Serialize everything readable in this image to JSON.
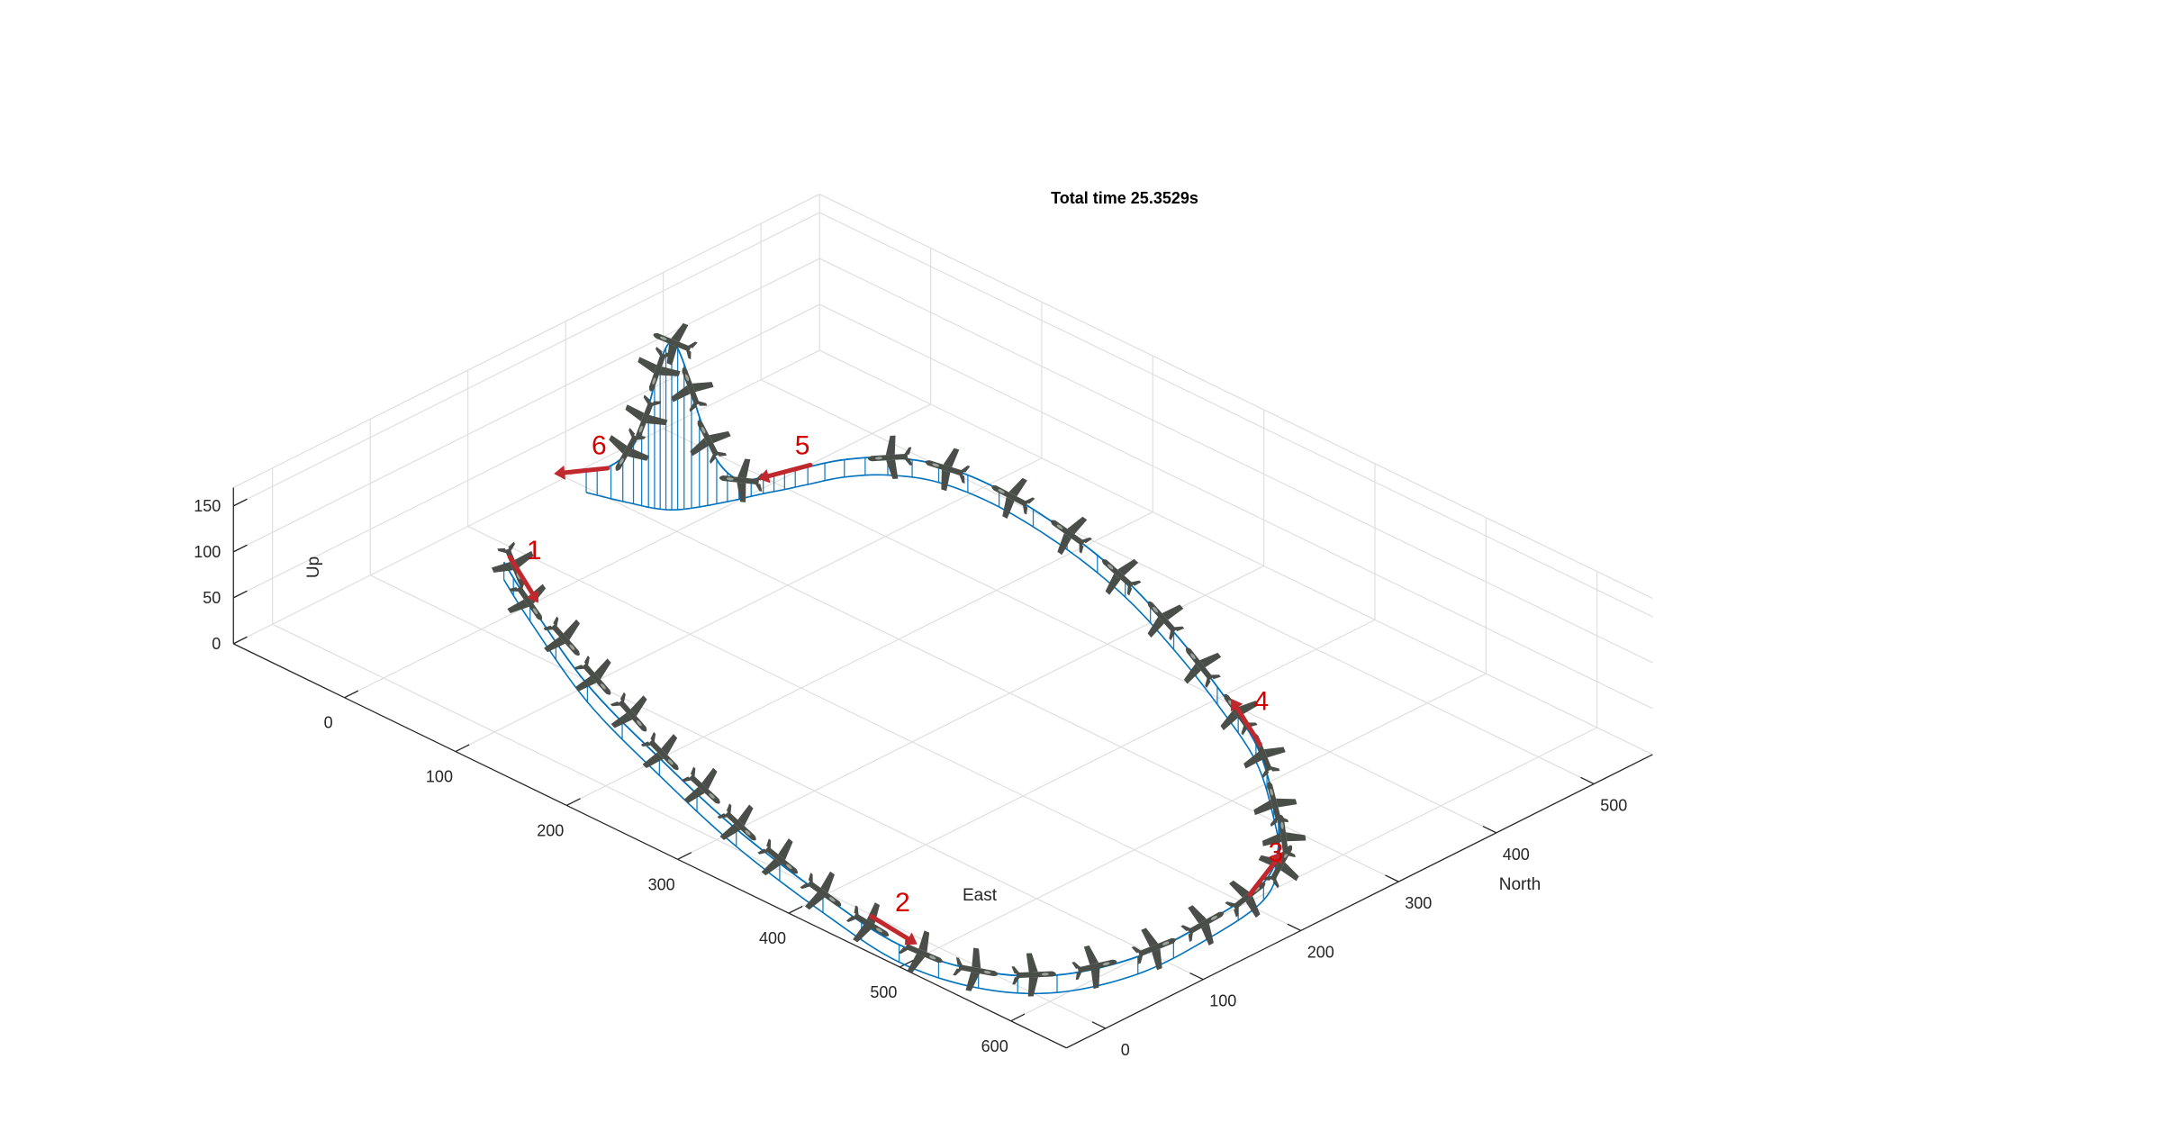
{
  "chart_data": {
    "type": "line3d",
    "title": "Total time 25.3529s",
    "xlabel": "East",
    "ylabel": "North",
    "zlabel": "Up",
    "xlim": [
      -100,
      650
    ],
    "ylim": [
      -40,
      560
    ],
    "zlim": [
      0,
      170
    ],
    "xticks": [
      "0",
      "100",
      "200",
      "300",
      "400",
      "500",
      "600"
    ],
    "yticks": [
      "0",
      "100",
      "200",
      "300",
      "400",
      "500"
    ],
    "zticks": [
      "0",
      "50",
      "100",
      "150"
    ],
    "grid": true,
    "colors": {
      "path": "#0072BD",
      "arrow": "#C0282D",
      "label": "#D40000",
      "grid": "#DFDFDF",
      "axis": "#262626",
      "aircraft": "#4A4E49"
    },
    "trajectory": [
      {
        "e": -50,
        "n": 180,
        "u": 1
      },
      {
        "e": 0,
        "n": 150,
        "u": 1
      },
      {
        "e": 100,
        "n": 95,
        "u": 1
      },
      {
        "e": 200,
        "n": 55,
        "u": 1
      },
      {
        "e": 300,
        "n": 20,
        "u": 1
      },
      {
        "e": 400,
        "n": -5,
        "u": 1
      },
      {
        "e": 480,
        "n": -18,
        "u": 1
      },
      {
        "e": 540,
        "n": -5,
        "u": 1
      },
      {
        "e": 580,
        "n": 30,
        "u": 1
      },
      {
        "e": 600,
        "n": 90,
        "u": 1
      },
      {
        "e": 600,
        "n": 160,
        "u": 1
      },
      {
        "e": 590,
        "n": 230,
        "u": 1
      },
      {
        "e": 560,
        "n": 280,
        "u": 1
      },
      {
        "e": 520,
        "n": 320,
        "u": 1
      },
      {
        "e": 460,
        "n": 370,
        "u": 1
      },
      {
        "e": 390,
        "n": 410,
        "u": 1
      },
      {
        "e": 320,
        "n": 445,
        "u": 1
      },
      {
        "e": 250,
        "n": 475,
        "u": 1
      },
      {
        "e": 180,
        "n": 495,
        "u": 1
      },
      {
        "e": 110,
        "n": 505,
        "u": 1
      },
      {
        "e": 60,
        "n": 500,
        "u": 1
      },
      {
        "e": 30,
        "n": 482,
        "u": 1
      },
      {
        "e": 12,
        "n": 458,
        "u": 1
      },
      {
        "e": 2,
        "n": 432,
        "u": 1
      },
      {
        "e": -4,
        "n": 415,
        "u": 0
      },
      {
        "e": -10,
        "n": 400,
        "u": 0
      },
      {
        "e": -16,
        "n": 382,
        "u": 3
      },
      {
        "e": -22,
        "n": 366,
        "u": 30
      },
      {
        "e": -27,
        "n": 354,
        "u": 80
      },
      {
        "e": -32,
        "n": 344,
        "u": 140
      },
      {
        "e": -37,
        "n": 337,
        "u": 165
      },
      {
        "e": -43,
        "n": 332,
        "u": 142
      },
      {
        "e": -50,
        "n": 328,
        "u": 92
      },
      {
        "e": -60,
        "n": 324,
        "u": 46
      },
      {
        "e": -75,
        "n": 318,
        "u": 18
      },
      {
        "e": -92,
        "n": 312,
        "u": 6
      }
    ],
    "aircraft_positions": [
      {
        "e": -40,
        "n": 180,
        "u": 1
      },
      {
        "e": 0,
        "n": 150,
        "u": 1
      },
      {
        "e": 50,
        "n": 130,
        "u": 1
      },
      {
        "e": 100,
        "n": 105,
        "u": 1
      },
      {
        "e": 150,
        "n": 85,
        "u": 1
      },
      {
        "e": 200,
        "n": 60,
        "u": 1
      },
      {
        "e": 250,
        "n": 45,
        "u": 1
      },
      {
        "e": 300,
        "n": 25,
        "u": 1
      },
      {
        "e": 350,
        "n": 10,
        "u": 1
      },
      {
        "e": 400,
        "n": -3,
        "u": 1
      },
      {
        "e": 450,
        "n": -12,
        "u": 1
      },
      {
        "e": 500,
        "n": -15,
        "u": 1
      },
      {
        "e": 540,
        "n": -5,
        "u": 1
      },
      {
        "e": 570,
        "n": 20,
        "u": 1
      },
      {
        "e": 590,
        "n": 60,
        "u": 1
      },
      {
        "e": 600,
        "n": 110,
        "u": 1
      },
      {
        "e": 600,
        "n": 160,
        "u": 1
      },
      {
        "e": 595,
        "n": 210,
        "u": 1
      },
      {
        "e": 580,
        "n": 260,
        "u": 1
      },
      {
        "e": 555,
        "n": 290,
        "u": 1
      },
      {
        "e": 520,
        "n": 320,
        "u": 1
      },
      {
        "e": 470,
        "n": 365,
        "u": 1
      },
      {
        "e": 420,
        "n": 395,
        "u": 1
      },
      {
        "e": 360,
        "n": 425,
        "u": 1
      },
      {
        "e": 300,
        "n": 455,
        "u": 1
      },
      {
        "e": 240,
        "n": 478,
        "u": 1
      },
      {
        "e": 180,
        "n": 495,
        "u": 1
      },
      {
        "e": 120,
        "n": 504,
        "u": 1
      },
      {
        "e": 65,
        "n": 500,
        "u": 1
      },
      {
        "e": 30,
        "n": 482,
        "u": 1
      },
      {
        "e": -16,
        "n": 382,
        "u": 3
      },
      {
        "e": -25,
        "n": 360,
        "u": 55
      },
      {
        "e": -30,
        "n": 348,
        "u": 115
      },
      {
        "e": -37,
        "n": 337,
        "u": 165
      },
      {
        "e": -45,
        "n": 331,
        "u": 130
      },
      {
        "e": -53,
        "n": 327,
        "u": 75
      },
      {
        "e": -65,
        "n": 322,
        "u": 35
      }
    ],
    "waypoints": [
      {
        "label": "1",
        "e": -30,
        "n": 175,
        "u": 1
      },
      {
        "label": "2",
        "e": 460,
        "n": -5,
        "u": 1
      },
      {
        "label": "3",
        "e": 585,
        "n": 235,
        "u": 1
      },
      {
        "label": "4",
        "e": 440,
        "n": 385,
        "u": 1
      },
      {
        "label": "5",
        "e": -4,
        "n": 420,
        "u": 0
      },
      {
        "label": "6",
        "e": -92,
        "n": 312,
        "u": 6
      }
    ]
  }
}
